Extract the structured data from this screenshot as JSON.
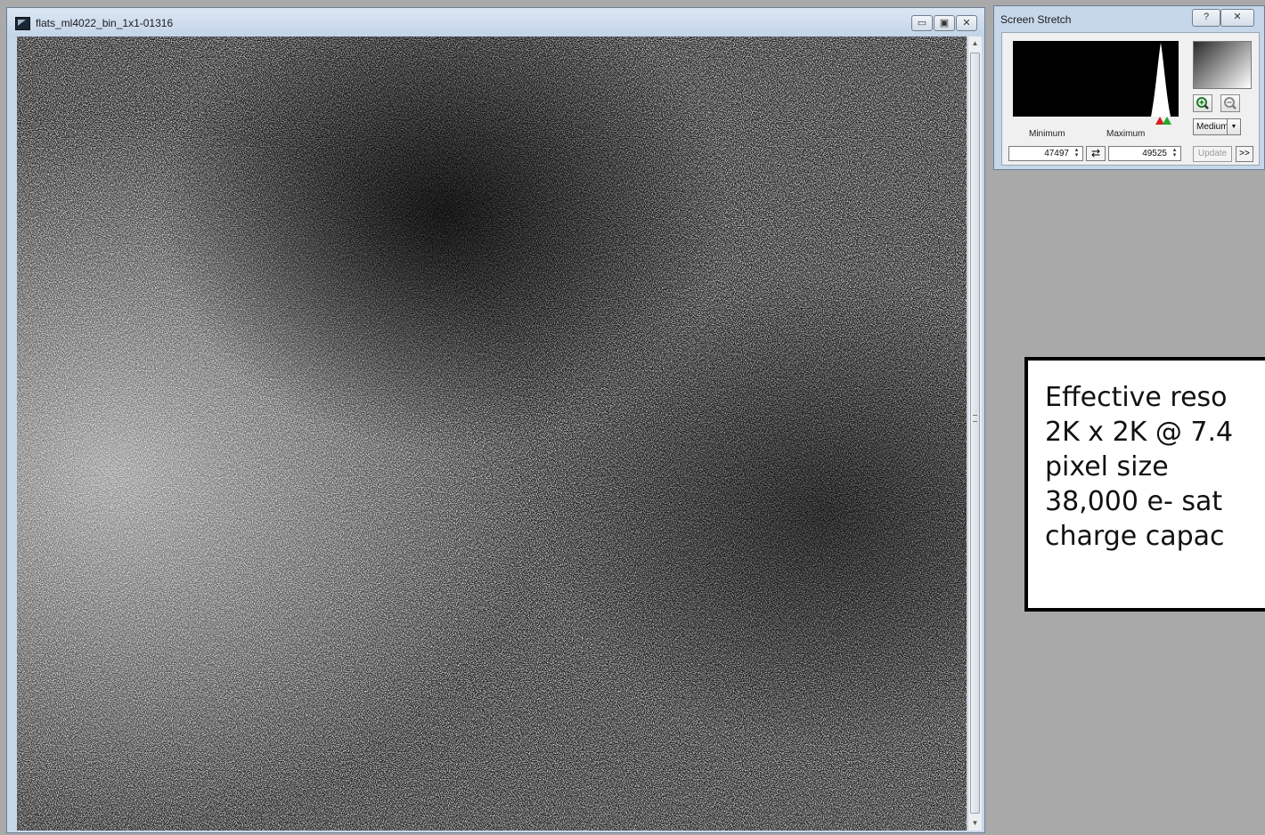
{
  "image_window": {
    "title": "flats_ml4022_bin_1x1-01316",
    "buttons": {
      "minimize": "▭",
      "maximize": "▣",
      "close": "✕"
    }
  },
  "screen_stretch": {
    "title": "Screen Stretch",
    "help_label": "?",
    "close_label": "✕",
    "minimum_label": "Minimum",
    "maximum_label": "Maximum",
    "minimum_value": "47497",
    "maximum_value": "49525",
    "preset": "Medium",
    "update_label": "Update",
    "more_label": ">>"
  },
  "annotation": {
    "lines": [
      "Effective reso",
      "2K x 2K @ 7.4",
      "pixel size",
      "38,000 e- sat",
      "charge capac"
    ]
  },
  "colors": {
    "window_frame": "#c7d7ea",
    "desktop": "#a9a9a9",
    "min_marker": "#d62020",
    "max_marker": "#1faa2a"
  }
}
